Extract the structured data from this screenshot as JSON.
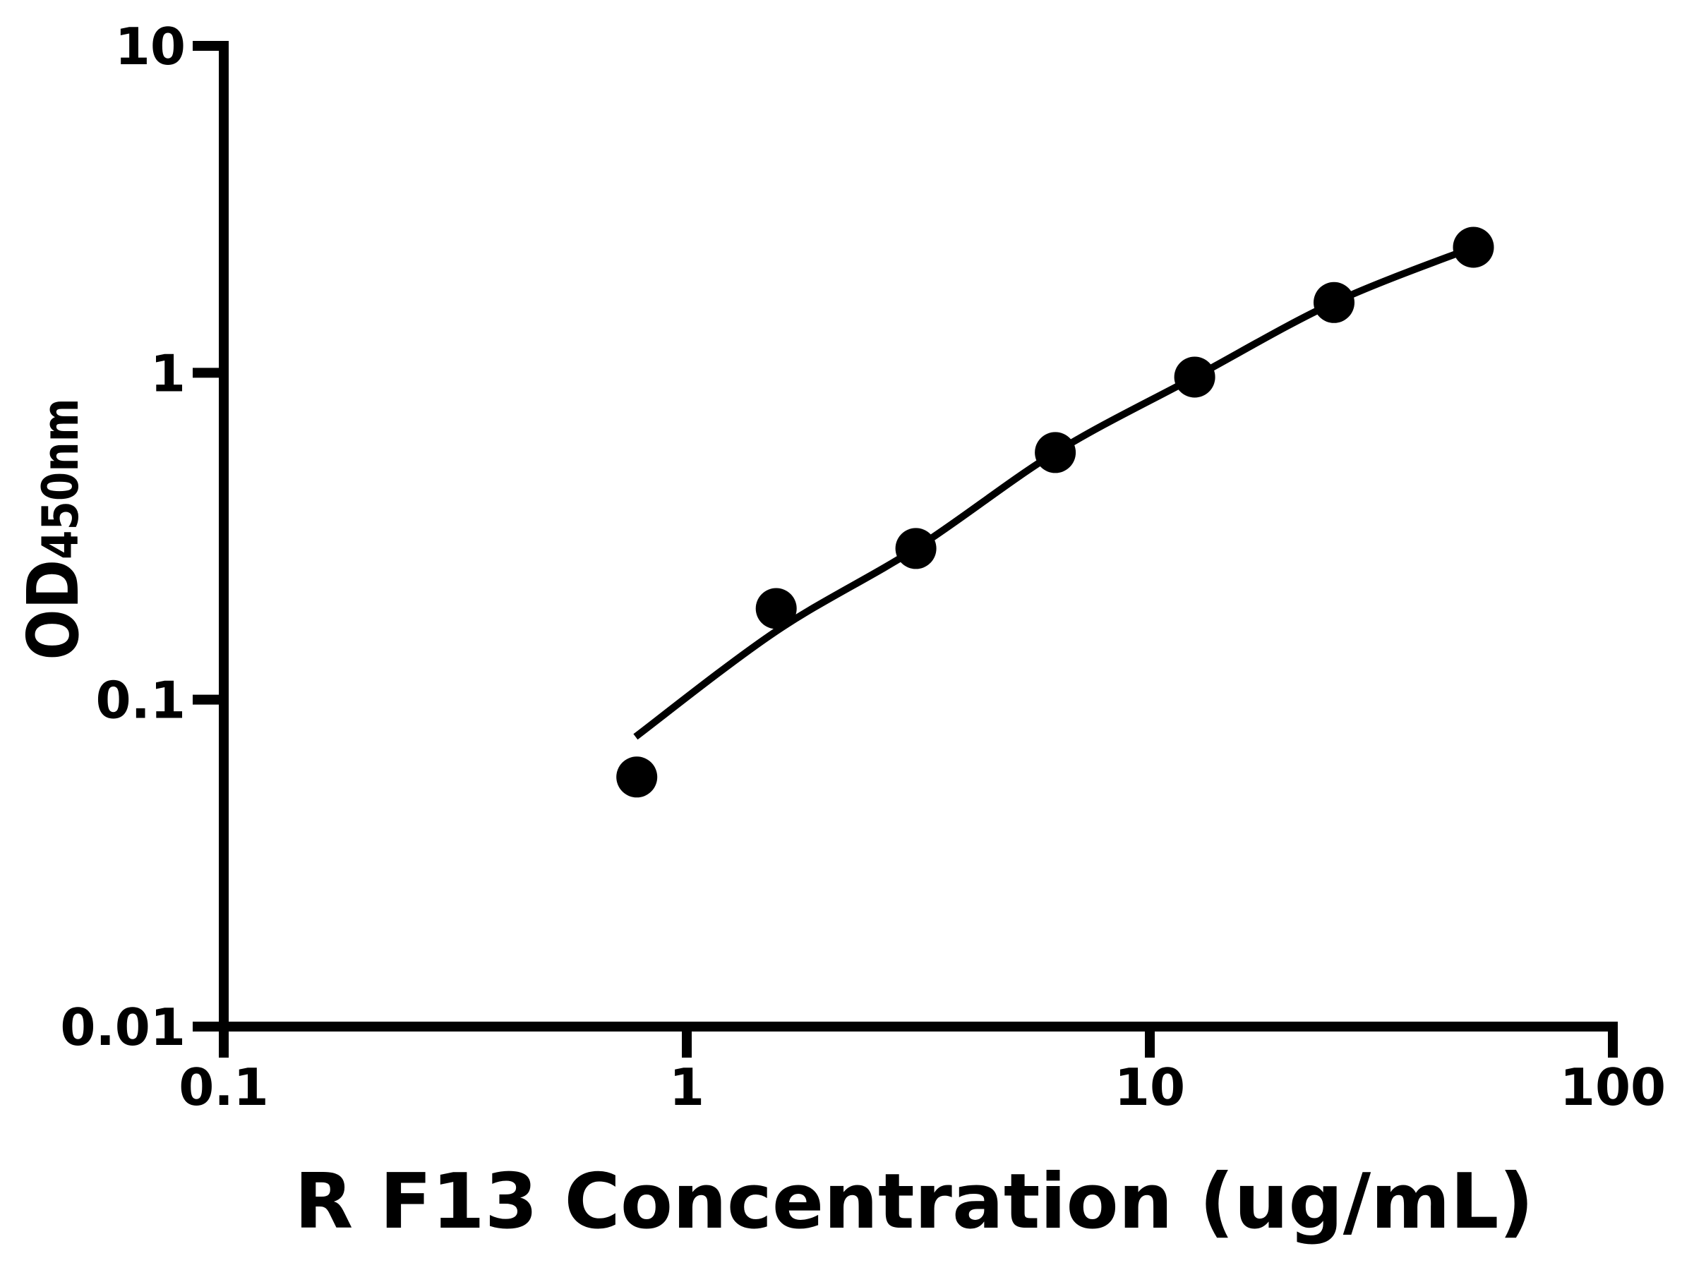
{
  "figure": {
    "background_color": "#ffffff",
    "ink_color": "#000000"
  },
  "chart_data": {
    "type": "scatter",
    "title": "",
    "xlabel": "R F13 Concentration (ug/mL)",
    "ylabel": "OD",
    "ylabel_subscript": "450nm",
    "x_scale": "log",
    "y_scale": "log",
    "xlim": [
      0.1,
      100
    ],
    "ylim": [
      0.01,
      10
    ],
    "x_ticks": [
      0.1,
      1,
      10,
      100
    ],
    "x_tick_labels": [
      "0.1",
      "1",
      "10",
      "100"
    ],
    "y_ticks": [
      10,
      1,
      0.1,
      0.01
    ],
    "y_tick_labels": [
      "10",
      "1",
      "0.1",
      "0.01"
    ],
    "grid": false,
    "legend": "none",
    "series": [
      {
        "name": "standard-data-points",
        "type": "scatter",
        "marker": "filled-circle",
        "color": "#000000",
        "points": [
          {
            "x": 0.78,
            "y": 0.058
          },
          {
            "x": 1.56,
            "y": 0.19
          },
          {
            "x": 3.125,
            "y": 0.29
          },
          {
            "x": 6.25,
            "y": 0.57
          },
          {
            "x": 12.5,
            "y": 0.97
          },
          {
            "x": 25,
            "y": 1.64
          },
          {
            "x": 50,
            "y": 2.42
          }
        ]
      },
      {
        "name": "fit-curve",
        "type": "line",
        "color": "#000000",
        "points": [
          {
            "x": 0.775,
            "y": 0.077
          },
          {
            "x": 1.56,
            "y": 0.162
          },
          {
            "x": 3.125,
            "y": 0.29
          },
          {
            "x": 6.25,
            "y": 0.57
          },
          {
            "x": 12.5,
            "y": 0.97
          },
          {
            "x": 25,
            "y": 1.64
          },
          {
            "x": 50,
            "y": 2.42
          }
        ]
      }
    ]
  }
}
